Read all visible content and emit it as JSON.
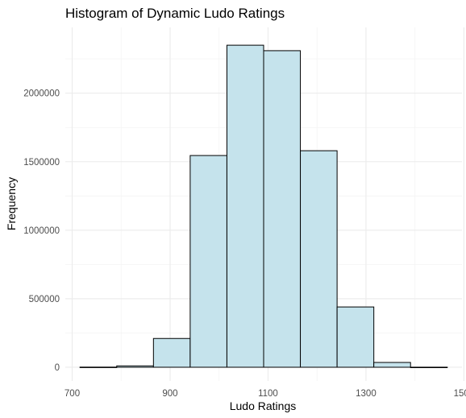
{
  "chart_data": {
    "type": "bar",
    "title": "Histogram of Dynamic Ludo Ratings",
    "xlabel": "Ludo Ratings",
    "ylabel": "Frequency",
    "bin_width": 75,
    "bins": [
      {
        "start": 716,
        "end": 791,
        "count": 1000
      },
      {
        "start": 791,
        "end": 866,
        "count": 10000
      },
      {
        "start": 866,
        "end": 941,
        "count": 210000
      },
      {
        "start": 941,
        "end": 1016,
        "count": 1545000
      },
      {
        "start": 1016,
        "end": 1091,
        "count": 2350000
      },
      {
        "start": 1091,
        "end": 1166,
        "count": 2310000
      },
      {
        "start": 1166,
        "end": 1241,
        "count": 1580000
      },
      {
        "start": 1241,
        "end": 1316,
        "count": 440000
      },
      {
        "start": 1316,
        "end": 1391,
        "count": 35000
      },
      {
        "start": 1391,
        "end": 1466,
        "count": 500
      }
    ],
    "xlim": [
      686,
      1496
    ],
    "ylim": [
      -100000,
      2480000
    ],
    "x_ticks": [
      700,
      900,
      1100,
      1300,
      1500
    ],
    "x_tick_labels": [
      "700",
      "900",
      "1100",
      "1300",
      "1500"
    ],
    "y_ticks": [
      0,
      500000,
      1000000,
      1500000,
      2000000
    ],
    "y_tick_labels": [
      "0",
      "500000",
      "1000000",
      "1500000",
      "2000000"
    ],
    "grid": true,
    "colors": {
      "bar_fill": "#c5e3ec",
      "bar_stroke": "#000000",
      "grid_major": "#ebebeb",
      "grid_minor": "#f4f4f4",
      "tick_text": "#4d4d4d"
    }
  }
}
